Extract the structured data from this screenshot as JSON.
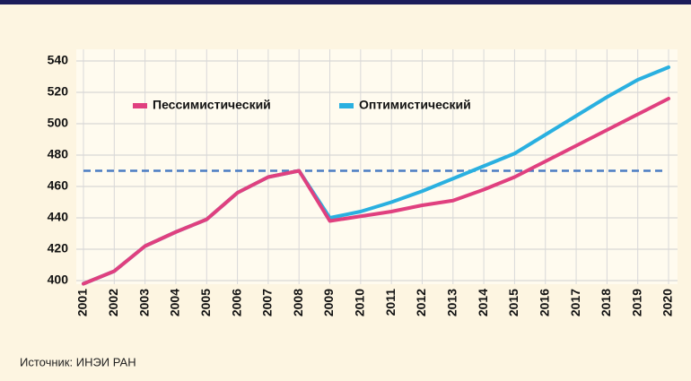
{
  "chart_data": {
    "type": "line",
    "categories": [
      "2001",
      "2002",
      "2003",
      "2004",
      "2005",
      "2006",
      "2007",
      "2008",
      "2009",
      "2010",
      "2011",
      "2012",
      "2013",
      "2014",
      "2015",
      "2016",
      "2017",
      "2018",
      "2019",
      "2020"
    ],
    "series": [
      {
        "name": "Пессимистический",
        "color": "#e0407f",
        "values": [
          398,
          406,
          422,
          431,
          439,
          456,
          466,
          470,
          438,
          441,
          444,
          448,
          451,
          458,
          466,
          476,
          486,
          496,
          506,
          516
        ]
      },
      {
        "name": "Оптимистический",
        "color": "#2ab0e0",
        "values": [
          398,
          406,
          422,
          431,
          439,
          456,
          466,
          470,
          440,
          444,
          450,
          457,
          465,
          473,
          481,
          493,
          505,
          517,
          528,
          536
        ]
      }
    ],
    "ylim": [
      400,
      540
    ],
    "yticks": [
      400,
      420,
      440,
      460,
      480,
      500,
      520,
      540
    ],
    "grid": true,
    "reference_line": {
      "value": 470,
      "color": "#4a7cc4"
    },
    "source": "Источник: ИНЭИ РАН"
  }
}
